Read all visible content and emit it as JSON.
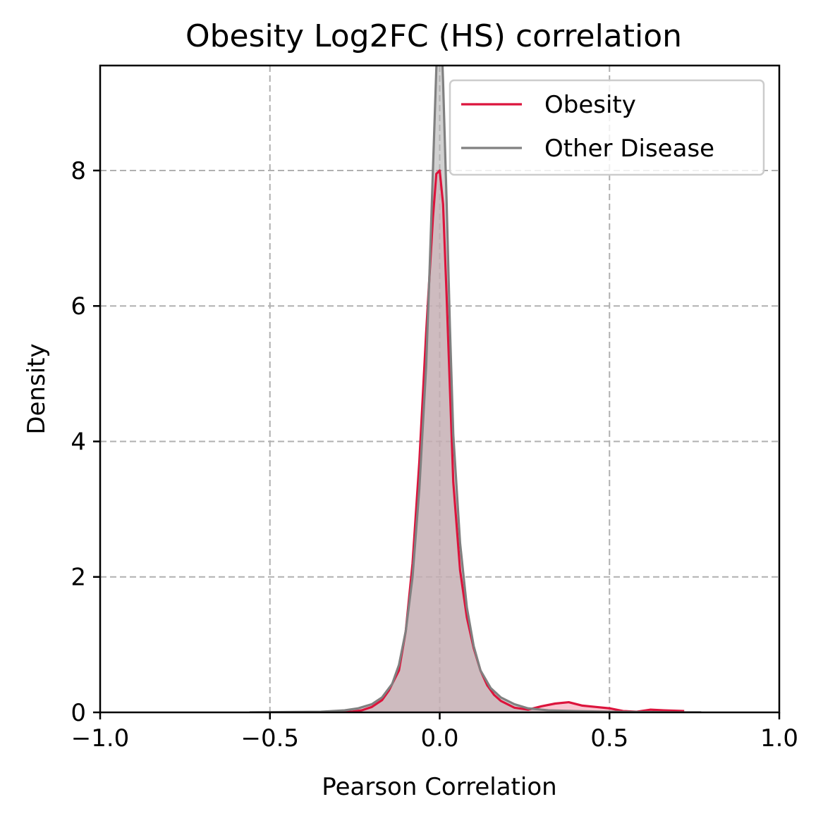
{
  "chart_data": {
    "type": "area",
    "title": "Obesity Log2FC (HS) correlation",
    "xlabel": "Pearson Correlation",
    "ylabel": "Density",
    "xlim": [
      -1.0,
      1.0
    ],
    "ylim": [
      0,
      9.55
    ],
    "xticks": [
      -1.0,
      -0.5,
      0.0,
      0.5,
      1.0
    ],
    "xtick_labels": [
      "−1.0",
      "−0.5",
      "0.0",
      "0.5",
      "1.0"
    ],
    "yticks": [
      0,
      2,
      4,
      6,
      8
    ],
    "ytick_labels": [
      "0",
      "2",
      "4",
      "6",
      "8"
    ],
    "grid": true,
    "legend_position": "upper right",
    "series": [
      {
        "name": "Obesity",
        "color": "#dc143c",
        "fill": "#f4a3b4",
        "x": [
          -0.33,
          -0.3,
          -0.26,
          -0.23,
          -0.2,
          -0.17,
          -0.15,
          -0.12,
          -0.1,
          -0.08,
          -0.06,
          -0.04,
          -0.02,
          -0.01,
          0.0,
          0.01,
          0.02,
          0.03,
          0.04,
          0.06,
          0.08,
          0.1,
          0.12,
          0.14,
          0.16,
          0.18,
          0.22,
          0.26,
          0.3,
          0.34,
          0.38,
          0.42,
          0.46,
          0.5,
          0.54,
          0.58,
          0.62,
          0.66,
          0.72
        ],
        "y": [
          0.01,
          0.02,
          0.01,
          0.03,
          0.08,
          0.18,
          0.32,
          0.62,
          1.2,
          2.2,
          3.7,
          5.6,
          7.3,
          7.95,
          8.0,
          7.5,
          6.2,
          4.8,
          3.4,
          2.1,
          1.4,
          0.95,
          0.62,
          0.4,
          0.26,
          0.17,
          0.07,
          0.04,
          0.09,
          0.13,
          0.15,
          0.1,
          0.08,
          0.06,
          0.02,
          0.01,
          0.04,
          0.03,
          0.02
        ]
      },
      {
        "name": "Other Disease",
        "color": "#808080",
        "fill": "#b3b3b3",
        "x": [
          -0.56,
          -0.45,
          -0.35,
          -0.28,
          -0.24,
          -0.2,
          -0.17,
          -0.14,
          -0.12,
          -0.1,
          -0.08,
          -0.06,
          -0.04,
          -0.03,
          -0.02,
          -0.01,
          -0.005,
          0.0,
          0.005,
          0.01,
          0.02,
          0.03,
          0.04,
          0.06,
          0.08,
          0.1,
          0.12,
          0.15,
          0.18,
          0.22,
          0.26,
          0.32,
          0.4,
          0.5,
          0.6,
          0.7,
          0.77
        ],
        "y": [
          0.0,
          0.005,
          0.01,
          0.03,
          0.06,
          0.12,
          0.22,
          0.42,
          0.7,
          1.2,
          2.0,
          3.3,
          5.1,
          6.5,
          8.0,
          9.5,
          10.0,
          10.2,
          10.0,
          9.3,
          7.6,
          5.7,
          4.1,
          2.5,
          1.55,
          0.98,
          0.62,
          0.36,
          0.22,
          0.12,
          0.06,
          0.03,
          0.02,
          0.01,
          0.005,
          0.0,
          0.0
        ]
      }
    ]
  }
}
